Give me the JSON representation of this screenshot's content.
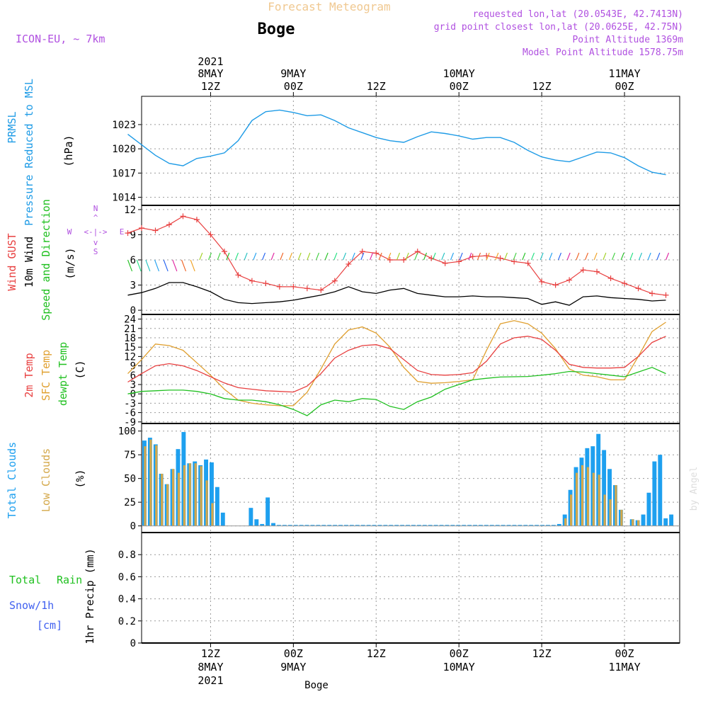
{
  "header": {
    "title": "Forecast Meteogram",
    "station": "Boge",
    "model": "ICON-EU, ~ 7km",
    "requested": "requested lon,lat (20.0543E, 42.7413N)",
    "gridpoint": "grid point closest lon,lat (20.0625E, 42.75N)",
    "point_alt": "Point Altitude 1369m",
    "model_alt": "Model Point Altitude 1578.75m",
    "footer_station": "Boge",
    "credit": "by Angel"
  },
  "time_axis": {
    "top": [
      {
        "l1": "2021",
        "l2": "8MAY",
        "l3": "12Z",
        "h": 12
      },
      {
        "l1": "",
        "l2": "9MAY",
        "l3": "00Z",
        "h": 24
      },
      {
        "l1": "",
        "l2": "",
        "l3": "12Z",
        "h": 36
      },
      {
        "l1": "",
        "l2": "10MAY",
        "l3": "00Z",
        "h": 48
      },
      {
        "l1": "",
        "l2": "",
        "l3": "12Z",
        "h": 60
      },
      {
        "l1": "",
        "l2": "11MAY",
        "l3": "00Z",
        "h": 72
      }
    ],
    "bottom": [
      {
        "l1": "12Z",
        "l2": "8MAY",
        "l3": "2021",
        "h": 12
      },
      {
        "l1": "00Z",
        "l2": "9MAY",
        "l3": "",
        "h": 24
      },
      {
        "l1": "12Z",
        "l2": "",
        "l3": "",
        "h": 36
      },
      {
        "l1": "00Z",
        "l2": "10MAY",
        "l3": "",
        "h": 48
      },
      {
        "l1": "12Z",
        "l2": "",
        "l3": "",
        "h": 60
      },
      {
        "l1": "00Z",
        "l2": "11MAY",
        "l3": "",
        "h": 72
      }
    ]
  },
  "panels": {
    "pressure": {
      "label1": "PRMSL",
      "label2": "Pressure Reduced to MSL",
      "unit": "(hPa)",
      "ticks": [
        "1014",
        "1017",
        "1020",
        "1023"
      ]
    },
    "wind": {
      "label_gust": "Wind GUST",
      "label_10m": "10m Wind",
      "label_dir": "Speed and Direction",
      "unit": "(m/s)",
      "ticks": [
        "0",
        "3",
        "6",
        "9",
        "12"
      ],
      "compass_w": "W",
      "compass_e": "E",
      "compass_row": "<-|->",
      "compass_n": "N",
      "compass_s": "S",
      "compass_arrow_up": "^",
      "compass_arrow_dn": "v"
    },
    "temp": {
      "label1": "2m Temp",
      "label2": "SFC Temp",
      "label3": "dewpt Temp",
      "unit": "(C)",
      "ticks": [
        "-9",
        "-6",
        "-3",
        "0",
        "3",
        "6",
        "9",
        "12",
        "15",
        "18",
        "21",
        "24"
      ]
    },
    "clouds": {
      "label1": "Total Clouds",
      "label2": "Low Clouds",
      "unit": "(%)",
      "ticks": [
        "0",
        "25",
        "50",
        "75",
        "100"
      ]
    },
    "precip": {
      "label_total": "Total",
      "label_rain": "Rain",
      "label_snow": "Snow/1h",
      "label_cm": "[cm]",
      "ylabel": "1hr Precip (mm)",
      "ticks": [
        "0",
        "0.2",
        "0.4",
        "0.6",
        "0.8"
      ]
    }
  },
  "colors": {
    "pressure": "#1e9be6",
    "gust": "#e84040",
    "wind10": "#000000",
    "t2m": "#e84040",
    "sfc": "#e0a030",
    "dew": "#20c020",
    "total_clouds": "#1ea0ef",
    "low_clouds": "#d4a84a",
    "purple": "#b050e0",
    "title": "#f0c890",
    "rain": "#20c020",
    "snow": "#4060f0"
  },
  "chart_data": [
    {
      "type": "line",
      "title": "PRMSL Pressure Reduced to MSL",
      "ylabel": "hPa",
      "ylim": [
        1013,
        1026.5
      ],
      "x": [
        0,
        2,
        4,
        6,
        8,
        10,
        12,
        14,
        16,
        18,
        20,
        22,
        24,
        26,
        28,
        30,
        32,
        34,
        36,
        38,
        40,
        42,
        44,
        46,
        48,
        50,
        52,
        54,
        56,
        58,
        60,
        62,
        64,
        66,
        68,
        70,
        72,
        74,
        76,
        78
      ],
      "values": [
        1021.8,
        1020.5,
        1019.2,
        1018.2,
        1017.9,
        1018.8,
        1019.1,
        1019.5,
        1021.0,
        1023.5,
        1024.6,
        1024.8,
        1024.5,
        1024.1,
        1024.2,
        1023.5,
        1022.6,
        1022.0,
        1021.4,
        1021.0,
        1020.8,
        1021.5,
        1022.1,
        1021.9,
        1021.6,
        1021.2,
        1021.4,
        1021.4,
        1020.8,
        1019.8,
        1019.0,
        1018.6,
        1018.4,
        1019.0,
        1019.6,
        1019.5,
        1018.9,
        1017.9,
        1017.1,
        1016.8
      ]
    },
    {
      "type": "line",
      "title": "Wind GUST / 10m Wind Speed and Direction",
      "ylabel": "m/s",
      "ylim": [
        0,
        12
      ],
      "x": [
        0,
        2,
        4,
        6,
        8,
        10,
        12,
        14,
        16,
        18,
        20,
        22,
        24,
        26,
        28,
        30,
        32,
        34,
        36,
        38,
        40,
        42,
        44,
        46,
        48,
        50,
        52,
        54,
        56,
        58,
        60,
        62,
        64,
        66,
        68,
        70,
        72,
        74,
        76,
        78
      ],
      "series": [
        {
          "name": "Wind GUST",
          "values": [
            9.2,
            9.8,
            9.5,
            10.2,
            11.2,
            10.8,
            9.0,
            7.0,
            4.2,
            3.5,
            3.2,
            2.8,
            2.8,
            2.6,
            2.4,
            3.5,
            5.5,
            7.0,
            6.8,
            6.0,
            6.0,
            7.0,
            6.2,
            5.6,
            5.8,
            6.4,
            6.5,
            6.2,
            5.8,
            5.6,
            3.4,
            3.0,
            3.6,
            4.8,
            4.6,
            3.8,
            3.2,
            2.6,
            2.0,
            1.8
          ]
        },
        {
          "name": "10m Wind",
          "values": [
            1.8,
            2.1,
            2.6,
            3.3,
            3.3,
            2.8,
            2.2,
            1.3,
            0.9,
            0.8,
            0.9,
            1.0,
            1.2,
            1.5,
            1.8,
            2.2,
            2.8,
            2.2,
            2.0,
            2.4,
            2.6,
            2.0,
            1.8,
            1.6,
            1.6,
            1.7,
            1.6,
            1.6,
            1.5,
            1.4,
            0.7,
            1.0,
            0.6,
            1.6,
            1.7,
            1.5,
            1.4,
            1.3,
            1.1,
            1.2
          ]
        }
      ]
    },
    {
      "type": "line",
      "title": "2m Temp / SFC Temp / dewpt Temp",
      "ylabel": "C",
      "ylim": [
        -9,
        25
      ],
      "x": [
        0,
        2,
        4,
        6,
        8,
        10,
        12,
        14,
        16,
        18,
        20,
        22,
        24,
        26,
        28,
        30,
        32,
        34,
        36,
        38,
        40,
        42,
        44,
        46,
        48,
        50,
        52,
        54,
        56,
        58,
        60,
        62,
        64,
        66,
        68,
        70,
        72,
        74,
        76,
        78
      ],
      "series": [
        {
          "name": "2m Temp",
          "values": [
            3.8,
            6.5,
            9.0,
            9.7,
            9.0,
            7.5,
            5.5,
            3.5,
            2.0,
            1.5,
            1.0,
            0.8,
            0.6,
            2.5,
            6.5,
            11.5,
            14.0,
            15.5,
            15.8,
            14.5,
            11.0,
            7.5,
            6.2,
            6.0,
            6.2,
            6.8,
            10.5,
            16.0,
            18.0,
            18.5,
            17.5,
            14.0,
            9.5,
            8.5,
            8.3,
            8.3,
            8.5,
            12.0,
            16.5,
            18.5
          ]
        },
        {
          "name": "SFC Temp",
          "values": [
            6.5,
            11.0,
            16.0,
            15.5,
            14.0,
            10.0,
            6.0,
            1.5,
            -2.0,
            -3.0,
            -3.5,
            -3.8,
            -3.8,
            0.5,
            8.0,
            16.0,
            20.5,
            21.5,
            19.5,
            15.0,
            8.5,
            4.0,
            3.4,
            3.6,
            4.0,
            4.5,
            14.0,
            22.5,
            23.5,
            22.5,
            19.5,
            14.5,
            8.0,
            6.0,
            5.5,
            4.5,
            4.5,
            12.0,
            20.0,
            23.0
          ]
        },
        {
          "name": "dewpt Temp",
          "values": [
            0.0,
            0.8,
            1.0,
            1.2,
            1.2,
            0.8,
            0.0,
            -1.5,
            -2.0,
            -2.0,
            -2.5,
            -3.5,
            -5.0,
            -7.0,
            -3.5,
            -2.0,
            -2.5,
            -1.5,
            -1.8,
            -4.0,
            -5.0,
            -2.5,
            -1.0,
            1.5,
            3.0,
            4.5,
            5.0,
            5.4,
            5.5,
            5.6,
            6.0,
            6.5,
            7.2,
            7.0,
            6.5,
            6.0,
            5.5,
            7.0,
            8.5,
            6.5
          ]
        }
      ]
    },
    {
      "type": "bar",
      "title": "Total Clouds / Low Clouds",
      "ylabel": "%",
      "ylim": [
        0,
        100
      ],
      "categories": [
        "0",
        "1",
        "2",
        "3",
        "4",
        "5",
        "6",
        "7",
        "8",
        "9",
        "10",
        "11",
        "12",
        "13",
        "14",
        "15",
        "16",
        "17",
        "18",
        "19",
        "20",
        "21",
        "22",
        "23",
        "24",
        "25",
        "26",
        "27",
        "28",
        "29",
        "30",
        "31",
        "32",
        "33",
        "34",
        "35",
        "36",
        "37",
        "38",
        "39",
        "40",
        "41",
        "42",
        "43",
        "44",
        "45",
        "46",
        "47",
        "48",
        "49",
        "50",
        "51",
        "52",
        "53",
        "54",
        "55",
        "56",
        "57",
        "58",
        "59",
        "60",
        "61",
        "62",
        "63",
        "64",
        "65",
        "66",
        "67",
        "68",
        "69",
        "70",
        "71",
        "72",
        "73",
        "74",
        "75",
        "76",
        "77",
        "78",
        "79",
        "80",
        "81",
        "82",
        "83",
        "84",
        "85",
        "86",
        "87",
        "88",
        "89",
        "90",
        "91",
        "92",
        "93",
        "94",
        "95"
      ],
      "series": [
        {
          "name": "Total Clouds",
          "values": [
            90,
            93,
            86,
            55,
            44,
            60,
            81,
            99,
            66,
            68,
            64,
            70,
            67,
            41,
            14,
            0,
            0,
            0,
            0,
            19,
            7,
            2,
            30,
            3,
            1,
            1,
            1,
            1,
            1,
            1,
            1,
            1,
            1,
            1,
            1,
            1,
            1,
            1,
            1,
            1,
            1,
            1,
            1,
            1,
            1,
            1,
            1,
            1,
            1,
            1,
            1,
            1,
            1,
            1,
            1,
            1,
            1,
            1,
            1,
            1,
            1,
            1,
            1,
            1,
            1,
            1,
            1,
            1,
            1,
            1,
            1,
            1,
            1,
            1,
            2,
            12,
            38,
            62,
            72,
            82,
            84,
            97,
            80,
            60,
            43,
            17,
            0,
            7,
            6,
            12,
            35,
            68,
            75,
            8,
            12,
            0
          ]
        },
        {
          "name": "Low Clouds",
          "values": [
            84,
            91,
            85,
            55,
            44,
            60,
            56,
            64,
            66,
            66,
            63,
            48,
            24,
            0,
            0,
            0,
            0,
            0,
            0,
            0,
            0,
            0,
            0,
            0,
            0,
            0,
            0,
            0,
            0,
            0,
            0,
            0,
            0,
            0,
            0,
            0,
            0,
            0,
            0,
            0,
            0,
            0,
            0,
            0,
            0,
            0,
            0,
            0,
            0,
            0,
            0,
            0,
            0,
            0,
            0,
            0,
            0,
            0,
            0,
            0,
            0,
            0,
            0,
            0,
            0,
            0,
            0,
            0,
            0,
            0,
            0,
            0,
            0,
            0,
            0,
            8,
            33,
            56,
            64,
            62,
            56,
            54,
            33,
            28,
            43,
            17,
            0,
            7,
            6,
            0,
            0,
            0,
            0,
            0,
            0,
            0
          ]
        }
      ]
    },
    {
      "type": "bar",
      "title": "1hr Precip",
      "ylabel": "1hr Precip (mm)",
      "ylim": [
        0,
        1
      ],
      "series": [
        {
          "name": "Total Rain",
          "values": []
        },
        {
          "name": "Snow/1h",
          "values": []
        }
      ]
    }
  ]
}
